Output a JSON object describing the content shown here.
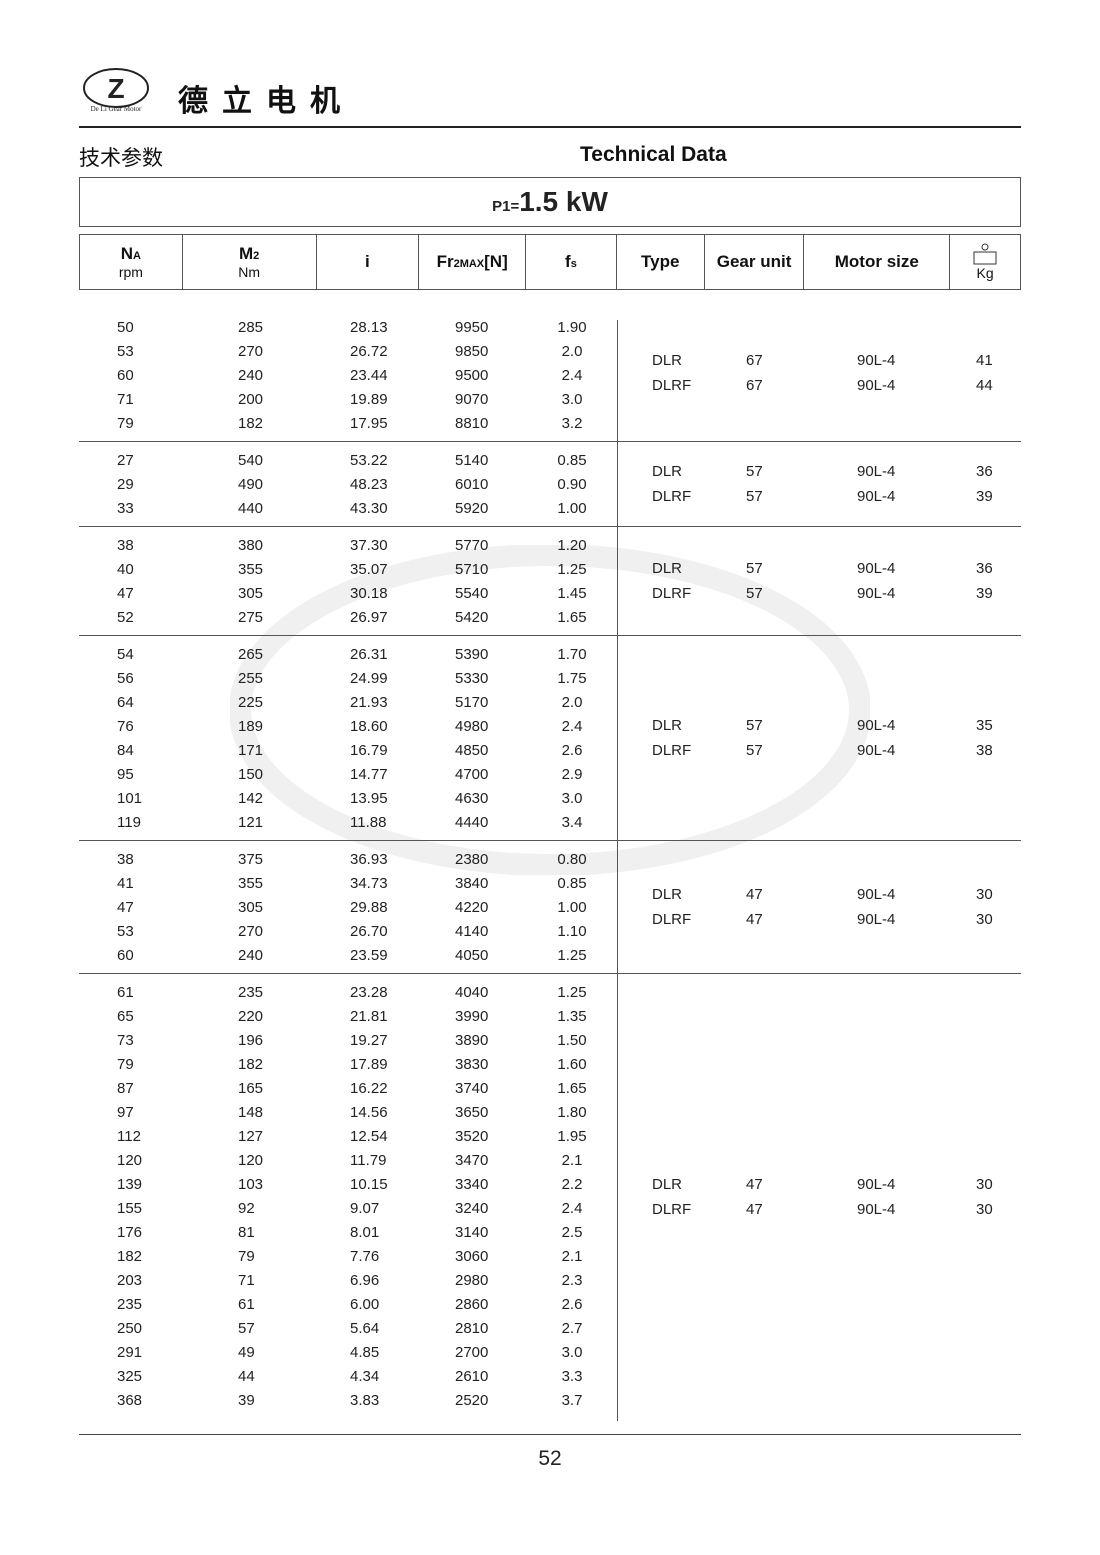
{
  "header": {
    "brand": "德立电机",
    "logo_text": "De Li Gear Motor",
    "cn_title": "技术参数",
    "en_title": "Technical Data"
  },
  "power": {
    "label": "P1=",
    "value": "1.5 kW"
  },
  "columns": [
    {
      "main": "NA",
      "sub": "rpm"
    },
    {
      "main": "M2",
      "sub": "Nm"
    },
    {
      "main": "i"
    },
    {
      "main": "Fr2MAX[N]"
    },
    {
      "main": "fs"
    },
    {
      "main": "Type"
    },
    {
      "main": "Gear unit"
    },
    {
      "main": "Motor size"
    },
    {
      "main": "",
      "sub": "Kg",
      "icon": "weight-icon"
    }
  ],
  "groups": [
    {
      "rows": [
        [
          "50",
          "285",
          "28.13",
          "9950",
          "1.90"
        ],
        [
          "53",
          "270",
          "26.72",
          "9850",
          "2.0"
        ],
        [
          "60",
          "240",
          "23.44",
          "9500",
          "2.4"
        ],
        [
          "71",
          "200",
          "19.89",
          "9070",
          "3.0"
        ],
        [
          "79",
          "182",
          "17.95",
          "8810",
          "3.2"
        ]
      ],
      "info": [
        [
          "DLR",
          "67",
          "90L-4",
          "41"
        ],
        [
          "DLRF",
          "67",
          "90L-4",
          "44"
        ]
      ]
    },
    {
      "rows": [
        [
          "27",
          "540",
          "53.22",
          "5140",
          "0.85"
        ],
        [
          "29",
          "490",
          "48.23",
          "6010",
          "0.90"
        ],
        [
          "33",
          "440",
          "43.30",
          "5920",
          "1.00"
        ]
      ],
      "info": [
        [
          "DLR",
          "57",
          "90L-4",
          "36"
        ],
        [
          "DLRF",
          "57",
          "90L-4",
          "39"
        ]
      ]
    },
    {
      "rows": [
        [
          "38",
          "380",
          "37.30",
          "5770",
          "1.20"
        ],
        [
          "40",
          "355",
          "35.07",
          "5710",
          "1.25"
        ],
        [
          "47",
          "305",
          "30.18",
          "5540",
          "1.45"
        ],
        [
          "52",
          "275",
          "26.97",
          "5420",
          "1.65"
        ]
      ],
      "info": [
        [
          "DLR",
          "57",
          "90L-4",
          "36"
        ],
        [
          "DLRF",
          "57",
          "90L-4",
          "39"
        ]
      ]
    },
    {
      "rows": [
        [
          "54",
          "265",
          "26.31",
          "5390",
          "1.70"
        ],
        [
          "56",
          "255",
          "24.99",
          "5330",
          "1.75"
        ],
        [
          "64",
          "225",
          "21.93",
          "5170",
          "2.0"
        ],
        [
          "76",
          "189",
          "18.60",
          "4980",
          "2.4"
        ],
        [
          "84",
          "171",
          "16.79",
          "4850",
          "2.6"
        ],
        [
          "95",
          "150",
          "14.77",
          "4700",
          "2.9"
        ],
        [
          "101",
          "142",
          "13.95",
          "4630",
          "3.0"
        ],
        [
          "119",
          "121",
          "11.88",
          "4440",
          "3.4"
        ]
      ],
      "info": [
        [
          "DLR",
          "57",
          "90L-4",
          "35"
        ],
        [
          "DLRF",
          "57",
          "90L-4",
          "38"
        ]
      ]
    },
    {
      "rows": [
        [
          "38",
          "375",
          "36.93",
          "2380",
          "0.80"
        ],
        [
          "41",
          "355",
          "34.73",
          "3840",
          "0.85"
        ],
        [
          "47",
          "305",
          "29.88",
          "4220",
          "1.00"
        ],
        [
          "53",
          "270",
          "26.70",
          "4140",
          "1.10"
        ],
        [
          "60",
          "240",
          "23.59",
          "4050",
          "1.25"
        ]
      ],
      "info": [
        [
          "DLR",
          "47",
          "90L-4",
          "30"
        ],
        [
          "DLRF",
          "47",
          "90L-4",
          "30"
        ]
      ]
    },
    {
      "rows": [
        [
          "61",
          "235",
          "23.28",
          "4040",
          "1.25"
        ],
        [
          "65",
          "220",
          "21.81",
          "3990",
          "1.35"
        ],
        [
          "73",
          "196",
          "19.27",
          "3890",
          "1.50"
        ],
        [
          "79",
          "182",
          "17.89",
          "3830",
          "1.60"
        ],
        [
          "87",
          "165",
          "16.22",
          "3740",
          "1.65"
        ],
        [
          "97",
          "148",
          "14.56",
          "3650",
          "1.80"
        ],
        [
          "112",
          "127",
          "12.54",
          "3520",
          "1.95"
        ],
        [
          "120",
          "120",
          "11.79",
          "3470",
          "2.1"
        ],
        [
          "139",
          "103",
          "10.15",
          "3340",
          "2.2"
        ],
        [
          "155",
          "92",
          "9.07",
          "3240",
          "2.4"
        ],
        [
          "176",
          "81",
          "8.01",
          "3140",
          "2.5"
        ],
        [
          "182",
          "79",
          "7.76",
          "3060",
          "2.1"
        ],
        [
          "203",
          "71",
          "6.96",
          "2980",
          "2.3"
        ],
        [
          "235",
          "61",
          "6.00",
          "2860",
          "2.6"
        ],
        [
          "250",
          "57",
          "5.64",
          "2810",
          "2.7"
        ],
        [
          "291",
          "49",
          "4.85",
          "2700",
          "3.0"
        ],
        [
          "325",
          "44",
          "4.34",
          "2610",
          "3.3"
        ],
        [
          "368",
          "39",
          "3.83",
          "2520",
          "3.7"
        ]
      ],
      "info": [
        [
          "DLR",
          "47",
          "90L-4",
          "30"
        ],
        [
          "DLRF",
          "47",
          "90L-4",
          "30"
        ]
      ]
    }
  ],
  "watermark": "De Li Gear Motor",
  "page_number": "52"
}
